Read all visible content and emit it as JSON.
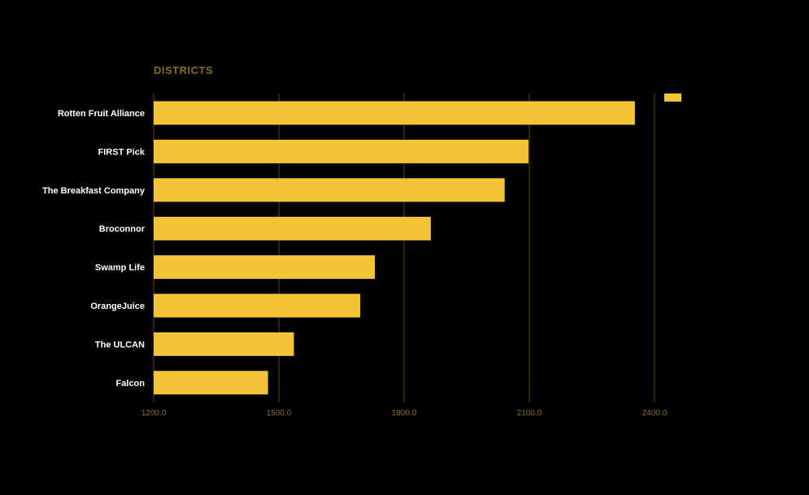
{
  "chart_data": {
    "type": "bar",
    "orientation": "horizontal",
    "title": "DISTRICTS",
    "categories": [
      "Rotten Fruit Alliance",
      "FIRST Pick",
      "The Breakfast Company",
      "Broconnor",
      "Swamp Life",
      "OrangeJuice",
      "The ULCAN",
      "Falcon"
    ],
    "values": [
      2353,
      2098,
      2041,
      1864,
      1730,
      1695,
      1536,
      1474
    ],
    "xlim": [
      1200,
      2400
    ],
    "x_ticks": [
      "1200.0",
      "1500.0",
      "1800.0",
      "2100.0",
      "2400.0"
    ],
    "x_tick_values": [
      1200,
      1500,
      1800,
      2100,
      2400
    ],
    "xlabel": "",
    "ylabel": "",
    "grid": "vertical",
    "legend": {
      "position": "top-right",
      "entries": [
        ""
      ]
    },
    "colors": {
      "bar": "#F2C436",
      "title": "#8A6D1A",
      "tick": "#8A6D1A",
      "grid": "#5C4A1E",
      "category_label": "#FFFFFF",
      "background": "#000000"
    }
  }
}
